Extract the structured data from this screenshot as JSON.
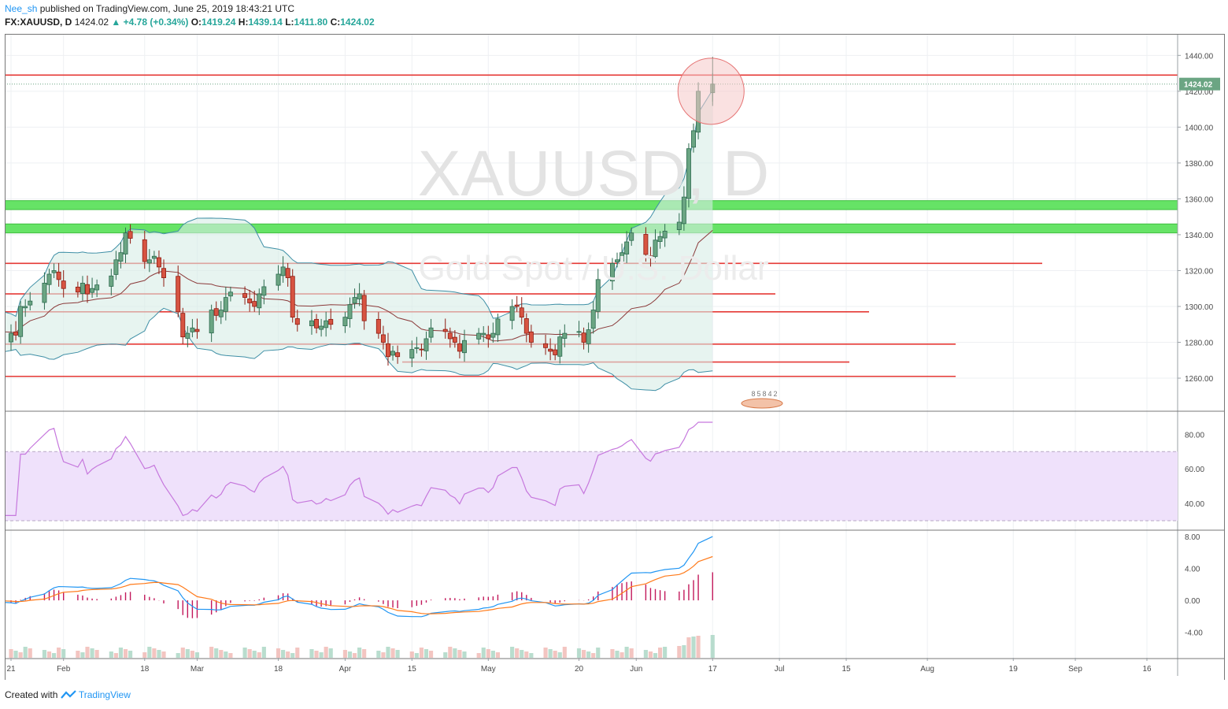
{
  "header": {
    "author": "Nee_sh",
    "published_text": "published on TradingView.com, June 25, 2019 18:43:21 UTC",
    "symbol": "FX:XAUUSD, D",
    "last": "1424.02",
    "change": "▲ +4.78 (+0.34%)",
    "o_label": "O:",
    "o": "1419.24",
    "h_label": "H:",
    "h": "1439.14",
    "l_label": "L:",
    "l": "1411.80",
    "c_label": "C:",
    "c": "1424.02"
  },
  "watermark": {
    "symbol": "XAUUSD, D",
    "name": "Gold Spot / U.S. Dollar"
  },
  "footer": {
    "created_with": "Created with",
    "brand": "TradingView"
  },
  "colors": {
    "up": "#26a69a",
    "up_fill": "#6ba583",
    "down": "#d75442",
    "down_fill": "#d75442",
    "sr_line": "#e53935",
    "zone": "#66e366",
    "bb_fill": "#d7ece6",
    "bb_line": "#3f8fa6",
    "ma": "#8b3a3a",
    "rsi_line": "#c678dd",
    "rsi_band": "#efe1fb",
    "macd": "#2196f3",
    "signal": "#ff7a1a",
    "hist": "#c2185b",
    "price_tag": "#6ba583",
    "grid": "#eef0f3",
    "axis_text": "#4a4a4a"
  },
  "chart_data": {
    "type": "candlestick",
    "price_axis": {
      "ticks": [
        1260,
        1280,
        1300,
        1320,
        1340,
        1360,
        1380,
        1400,
        1420,
        1440
      ],
      "ylim": [
        1242,
        1452
      ]
    },
    "x_tick_labels": [
      "21",
      "Feb",
      "18",
      "Mar",
      "18",
      "Apr",
      "15",
      "May",
      "20",
      "Jun",
      "17",
      "Jul",
      "15",
      "Aug",
      "19",
      "Sep",
      "16"
    ],
    "x_tick_dates": [
      "2019-01-21",
      "2019-02-01",
      "2019-02-18",
      "2019-03-01",
      "2019-03-18",
      "2019-04-01",
      "2019-04-15",
      "2019-05-01",
      "2019-05-20",
      "2019-06-01",
      "2019-06-17",
      "2019-07-01",
      "2019-07-15",
      "2019-08-01",
      "2019-08-19",
      "2019-09-01",
      "2019-09-16"
    ],
    "last_price_label": "1424.02",
    "ohlc_closes": [
      1291,
      1281,
      1285,
      1284,
      1300,
      1300,
      1303,
      1313,
      1318,
      1320,
      1315,
      1310,
      1308,
      1313,
      1307,
      1310,
      1312,
      1317,
      1326,
      1330,
      1341,
      1338,
      1325,
      1326,
      1328,
      1322,
      1316,
      1297,
      1283,
      1285,
      1288,
      1286,
      1298,
      1295,
      1298,
      1305,
      1308,
      1305,
      1302,
      1300,
      1307,
      1311,
      1318,
      1322,
      1316,
      1294,
      1290,
      1292,
      1288,
      1289,
      1292,
      1290,
      1294,
      1301,
      1305,
      1307,
      1292,
      1285,
      1280,
      1272,
      1275,
      1272,
      1276,
      1277,
      1276,
      1282,
      1288,
      1286,
      1282,
      1280,
      1275,
      1281,
      1285,
      1285,
      1282,
      1285,
      1293,
      1300,
      1300,
      1294,
      1285,
      1280,
      1277,
      1275,
      1273,
      1283,
      1285,
      1286,
      1280,
      1287,
      1298,
      1315,
      1324,
      1326,
      1330,
      1336,
      1341,
      1329,
      1327,
      1337,
      1339,
      1342,
      1347,
      1361,
      1388,
      1398,
      1420,
      1424
    ],
    "support_resistance": [
      1429,
      1324,
      1307,
      1297,
      1279,
      1269,
      1261
    ],
    "zones": [
      [
        1354,
        1359
      ],
      [
        1341,
        1346
      ]
    ],
    "rsi": {
      "ticks": [
        40,
        60,
        80
      ],
      "levels": [
        30,
        70
      ],
      "last": 87
    },
    "macd": {
      "ticks": [
        -4,
        0,
        4,
        8
      ]
    },
    "volume_label": "85842"
  }
}
